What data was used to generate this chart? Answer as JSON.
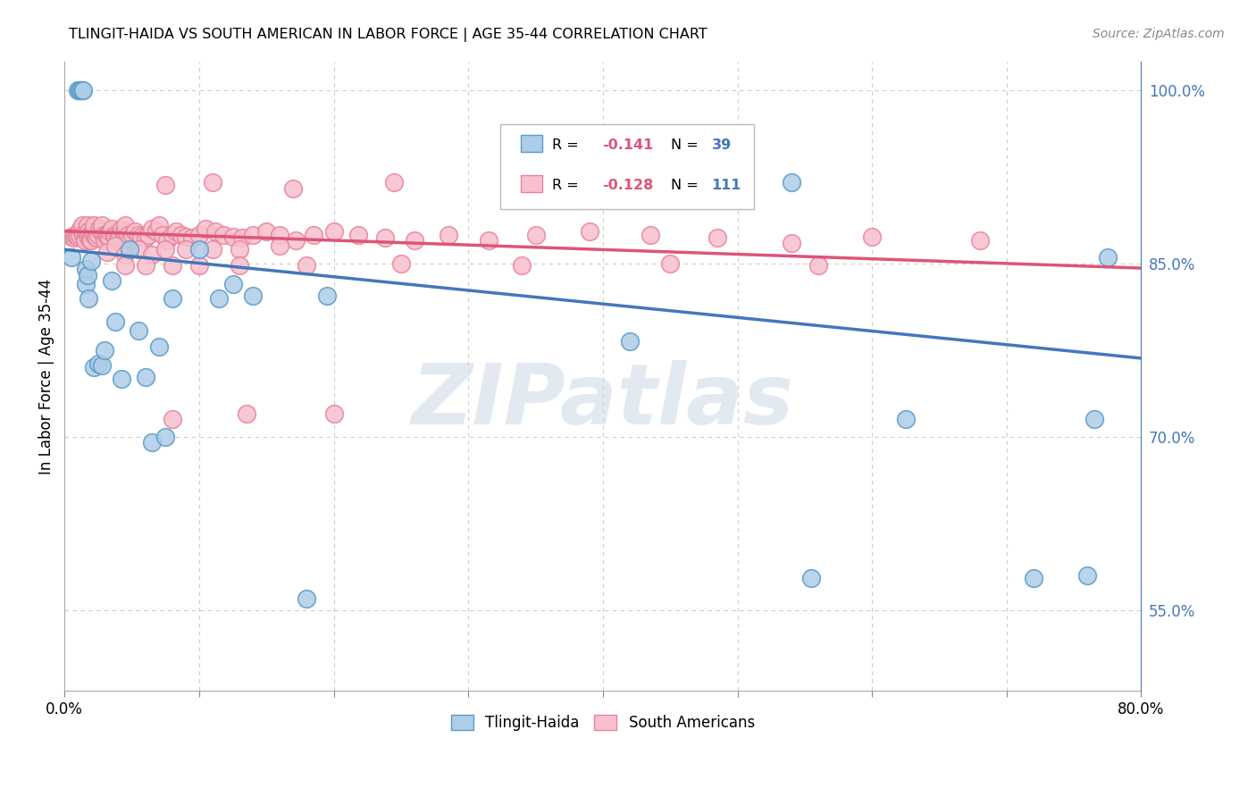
{
  "title": "TLINGIT-HAIDA VS SOUTH AMERICAN IN LABOR FORCE | AGE 35-44 CORRELATION CHART",
  "source": "Source: ZipAtlas.com",
  "ylabel": "In Labor Force | Age 35-44",
  "watermark_text": "ZIPatlas",
  "legend_r1": "R = ",
  "legend_v1": "-0.141",
  "legend_n1_label": "N = ",
  "legend_n1_val": "39",
  "legend_r2": "R = ",
  "legend_v2": "-0.128",
  "legend_n2_label": "N = ",
  "legend_n2_val": "111",
  "blue_face": "#aecde8",
  "blue_edge": "#5b9bc8",
  "pink_face": "#f7c0ce",
  "pink_edge": "#e8849a",
  "blue_line": "#4477bb",
  "pink_line": "#dd5577",
  "right_tick_color": "#4477bb",
  "grid_color": "#cccccc",
  "xlim": [
    0.0,
    0.8
  ],
  "ylim": [
    0.48,
    1.025
  ],
  "xtick_positions": [
    0.0,
    0.1,
    0.2,
    0.3,
    0.4,
    0.5,
    0.6,
    0.7,
    0.8
  ],
  "xtick_labels": [
    "0.0%",
    "",
    "",
    "",
    "",
    "",
    "",
    "",
    "80.0%"
  ],
  "ytick_right_positions": [
    0.55,
    0.7,
    0.85,
    1.0
  ],
  "ytick_right_labels": [
    "55.0%",
    "70.0%",
    "85.0%",
    "100.0%"
  ],
  "blue_trend_x": [
    0.0,
    0.8
  ],
  "blue_trend_y": [
    0.862,
    0.768
  ],
  "pink_trend_x": [
    0.0,
    0.8
  ],
  "pink_trend_y": [
    0.878,
    0.846
  ],
  "blue_x": [
    0.005,
    0.01,
    0.011,
    0.012,
    0.013,
    0.014,
    0.016,
    0.016,
    0.017,
    0.018,
    0.02,
    0.022,
    0.025,
    0.028,
    0.03,
    0.035,
    0.038,
    0.042,
    0.048,
    0.055,
    0.06,
    0.065,
    0.07,
    0.075,
    0.08,
    0.1,
    0.115,
    0.125,
    0.14,
    0.18,
    0.195,
    0.42,
    0.54,
    0.555,
    0.625,
    0.72,
    0.76,
    0.765,
    0.775
  ],
  "blue_y": [
    0.855,
    1.0,
    1.0,
    1.0,
    1.0,
    1.0,
    0.832,
    0.845,
    0.84,
    0.82,
    0.852,
    0.76,
    0.763,
    0.762,
    0.775,
    0.835,
    0.8,
    0.75,
    0.862,
    0.792,
    0.752,
    0.695,
    0.778,
    0.7,
    0.82,
    0.862,
    0.82,
    0.832,
    0.822,
    0.56,
    0.822,
    0.783,
    0.92,
    0.578,
    0.715,
    0.578,
    0.58,
    0.715,
    0.855
  ],
  "pink_x": [
    0.005,
    0.007,
    0.008,
    0.009,
    0.01,
    0.011,
    0.012,
    0.013,
    0.013,
    0.014,
    0.015,
    0.015,
    0.016,
    0.017,
    0.017,
    0.018,
    0.018,
    0.019,
    0.02,
    0.02,
    0.021,
    0.022,
    0.022,
    0.023,
    0.024,
    0.025,
    0.026,
    0.027,
    0.028,
    0.029,
    0.03,
    0.031,
    0.032,
    0.033,
    0.034,
    0.035,
    0.037,
    0.038,
    0.04,
    0.041,
    0.042,
    0.044,
    0.045,
    0.047,
    0.048,
    0.05,
    0.052,
    0.055,
    0.057,
    0.06,
    0.062,
    0.065,
    0.068,
    0.07,
    0.073,
    0.076,
    0.08,
    0.083,
    0.087,
    0.09,
    0.095,
    0.1,
    0.105,
    0.112,
    0.118,
    0.125,
    0.132,
    0.14,
    0.15,
    0.16,
    0.172,
    0.185,
    0.2,
    0.218,
    0.238,
    0.26,
    0.285,
    0.315,
    0.35,
    0.39,
    0.435,
    0.485,
    0.54,
    0.6,
    0.68,
    0.032,
    0.038,
    0.045,
    0.055,
    0.065,
    0.075,
    0.09,
    0.11,
    0.13,
    0.16,
    0.045,
    0.06,
    0.08,
    0.1,
    0.13,
    0.18,
    0.25,
    0.34,
    0.45,
    0.56,
    0.075,
    0.11,
    0.17,
    0.245,
    0.135,
    0.2,
    0.08
  ],
  "pink_y": [
    0.873,
    0.872,
    0.875,
    0.875,
    0.873,
    0.875,
    0.88,
    0.878,
    0.883,
    0.875,
    0.872,
    0.87,
    0.878,
    0.875,
    0.883,
    0.872,
    0.878,
    0.87,
    0.876,
    0.87,
    0.878,
    0.875,
    0.883,
    0.873,
    0.872,
    0.875,
    0.88,
    0.878,
    0.883,
    0.875,
    0.87,
    0.875,
    0.875,
    0.872,
    0.878,
    0.88,
    0.875,
    0.873,
    0.872,
    0.875,
    0.88,
    0.878,
    0.883,
    0.875,
    0.87,
    0.875,
    0.878,
    0.875,
    0.873,
    0.872,
    0.875,
    0.88,
    0.878,
    0.883,
    0.875,
    0.87,
    0.875,
    0.878,
    0.875,
    0.873,
    0.872,
    0.875,
    0.88,
    0.878,
    0.875,
    0.873,
    0.872,
    0.875,
    0.878,
    0.875,
    0.87,
    0.875,
    0.878,
    0.875,
    0.872,
    0.87,
    0.875,
    0.87,
    0.875,
    0.878,
    0.875,
    0.872,
    0.868,
    0.873,
    0.87,
    0.86,
    0.865,
    0.858,
    0.862,
    0.858,
    0.862,
    0.862,
    0.862,
    0.862,
    0.865,
    0.848,
    0.848,
    0.848,
    0.848,
    0.848,
    0.848,
    0.85,
    0.848,
    0.85,
    0.848,
    0.918,
    0.92,
    0.915,
    0.92,
    0.72,
    0.72,
    0.715
  ]
}
